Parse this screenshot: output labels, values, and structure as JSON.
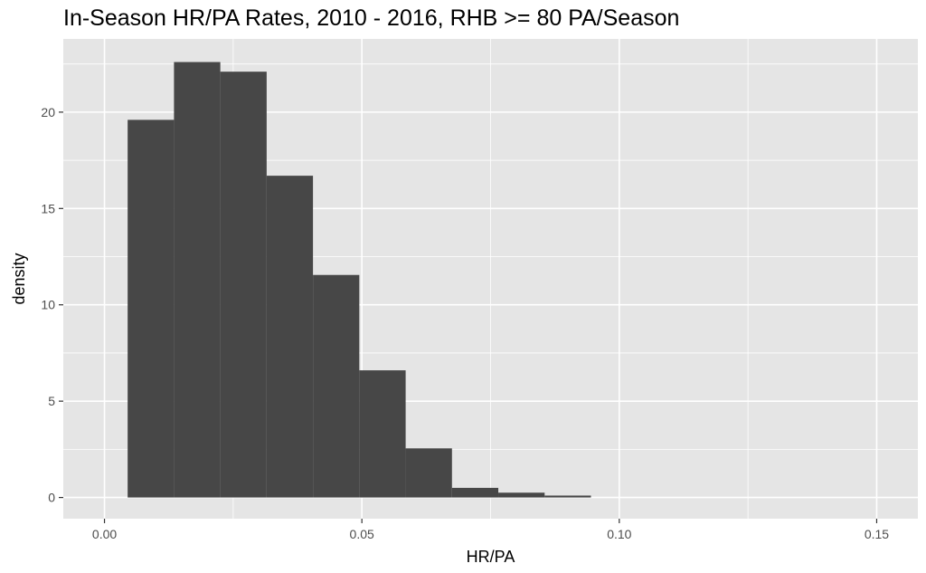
{
  "chart_data": {
    "type": "bar",
    "title": "In-Season HR/PA Rates, 2010 - 2016, RHB >= 80 PA/Season",
    "xlabel": "HR/PA",
    "ylabel": "density",
    "xlim": [
      -0.008,
      0.158
    ],
    "ylim": [
      -1.1,
      23.8
    ],
    "x_ticks": [
      0.0,
      0.05,
      0.1,
      0.15
    ],
    "x_tick_labels": [
      "0.00",
      "0.05",
      "0.10",
      "0.15"
    ],
    "y_ticks": [
      0,
      5,
      10,
      15,
      20
    ],
    "y_tick_labels": [
      "0",
      "5",
      "10",
      "15",
      "20"
    ],
    "grid": true,
    "bar_color": "#474747",
    "panel_color": "#e5e5e5",
    "grid_color": "#ffffff",
    "bins": [
      {
        "x0": 0.0045,
        "x1": 0.0135,
        "density": 19.6
      },
      {
        "x0": 0.0135,
        "x1": 0.0225,
        "density": 22.6
      },
      {
        "x0": 0.0225,
        "x1": 0.0315,
        "density": 22.1
      },
      {
        "x0": 0.0315,
        "x1": 0.0405,
        "density": 16.7
      },
      {
        "x0": 0.0405,
        "x1": 0.0495,
        "density": 11.55
      },
      {
        "x0": 0.0495,
        "x1": 0.0585,
        "density": 6.6
      },
      {
        "x0": 0.0585,
        "x1": 0.0675,
        "density": 2.55
      },
      {
        "x0": 0.0675,
        "x1": 0.0765,
        "density": 0.5
      },
      {
        "x0": 0.0765,
        "x1": 0.0855,
        "density": 0.25
      },
      {
        "x0": 0.0855,
        "x1": 0.0945,
        "density": 0.1
      }
    ]
  }
}
